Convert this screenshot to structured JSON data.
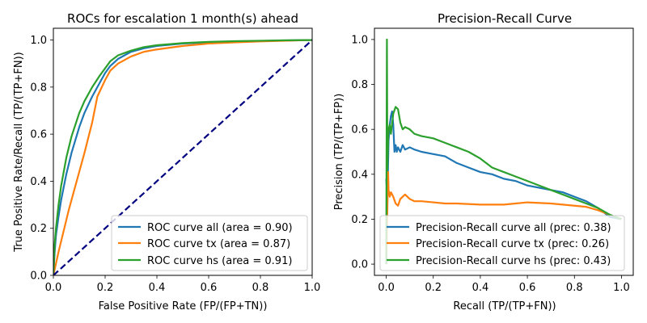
{
  "chart_data": [
    {
      "type": "line",
      "title": "ROCs for escalation 1 month(s) ahead",
      "xlabel": "False Positive Rate (FP/(FP+TN))",
      "ylabel": "True Positive Rate/Recall (TP/(TP+FN))",
      "xlim": [
        0,
        1.0
      ],
      "ylim": [
        0,
        1.05
      ],
      "xticks": [
        "0.0",
        "0.2",
        "0.4",
        "0.6",
        "0.8",
        "1.0"
      ],
      "yticks": [
        "0.0",
        "0.2",
        "0.4",
        "0.6",
        "0.8",
        "1.0"
      ],
      "grid": false,
      "legend_position": "lower-right",
      "series": [
        {
          "name": "ROC curve all (area = 0.90)",
          "color": "#1f77b4",
          "x": [
            0,
            0.005,
            0.01,
            0.02,
            0.03,
            0.05,
            0.07,
            0.1,
            0.12,
            0.15,
            0.18,
            0.2,
            0.22,
            0.25,
            0.3,
            0.35,
            0.4,
            0.5,
            0.6,
            0.7,
            0.8,
            0.9,
            1.0
          ],
          "y": [
            0,
            0.1,
            0.17,
            0.25,
            0.32,
            0.43,
            0.52,
            0.63,
            0.69,
            0.76,
            0.82,
            0.86,
            0.89,
            0.92,
            0.95,
            0.965,
            0.975,
            0.985,
            0.99,
            0.993,
            0.996,
            0.998,
            1.0
          ]
        },
        {
          "name": "ROC curve tx (area = 0.87)",
          "color": "#ff7f0e",
          "x": [
            0,
            0.02,
            0.04,
            0.06,
            0.08,
            0.1,
            0.12,
            0.15,
            0.17,
            0.2,
            0.22,
            0.25,
            0.3,
            0.35,
            0.4,
            0.5,
            0.6,
            0.7,
            0.8,
            0.9,
            1.0
          ],
          "y": [
            0,
            0.1,
            0.19,
            0.28,
            0.36,
            0.44,
            0.52,
            0.65,
            0.76,
            0.83,
            0.87,
            0.9,
            0.93,
            0.95,
            0.96,
            0.975,
            0.985,
            0.99,
            0.994,
            0.997,
            1.0
          ]
        },
        {
          "name": "ROC curve hs (area = 0.91)",
          "color": "#2ca02c",
          "x": [
            0,
            0.005,
            0.01,
            0.02,
            0.03,
            0.05,
            0.07,
            0.1,
            0.12,
            0.15,
            0.18,
            0.2,
            0.22,
            0.25,
            0.3,
            0.35,
            0.4,
            0.5,
            0.6,
            0.7,
            0.8,
            0.9,
            1.0
          ],
          "y": [
            0,
            0.13,
            0.2,
            0.3,
            0.38,
            0.5,
            0.59,
            0.69,
            0.74,
            0.8,
            0.85,
            0.88,
            0.91,
            0.935,
            0.955,
            0.97,
            0.978,
            0.987,
            0.992,
            0.995,
            0.997,
            0.999,
            1.0
          ]
        },
        {
          "name": "",
          "color": "#000080",
          "dashed": true,
          "x": [
            0,
            1.0
          ],
          "y": [
            0,
            1.0
          ]
        }
      ]
    },
    {
      "type": "line",
      "title": "Precision-Recall Curve",
      "xlabel": "Recall (TP/(TP+FN))",
      "ylabel": "Precision (TP/(TP+FP))",
      "xlim": [
        -0.05,
        1.05
      ],
      "ylim": [
        -0.05,
        1.05
      ],
      "xticks": [
        "0.0",
        "0.2",
        "0.4",
        "0.6",
        "0.8",
        "1.0"
      ],
      "yticks": [
        "0.0",
        "0.2",
        "0.4",
        "0.6",
        "0.8",
        "1.0"
      ],
      "grid": false,
      "legend_position": "lower-left",
      "series": [
        {
          "name": "Precision-Recall curve all (prec: 0.38)",
          "color": "#1f77b4",
          "x": [
            0.0,
            0.005,
            0.01,
            0.015,
            0.02,
            0.025,
            0.03,
            0.035,
            0.04,
            0.045,
            0.05,
            0.06,
            0.07,
            0.08,
            0.1,
            0.12,
            0.15,
            0.2,
            0.25,
            0.3,
            0.35,
            0.4,
            0.45,
            0.5,
            0.55,
            0.6,
            0.65,
            0.7,
            0.75,
            0.8,
            0.85,
            0.9,
            0.95,
            1.0
          ],
          "y": [
            0.38,
            0.3,
            0.55,
            0.62,
            0.66,
            0.68,
            0.62,
            0.5,
            0.53,
            0.5,
            0.52,
            0.5,
            0.53,
            0.51,
            0.52,
            0.51,
            0.5,
            0.49,
            0.48,
            0.45,
            0.43,
            0.41,
            0.4,
            0.38,
            0.37,
            0.35,
            0.34,
            0.33,
            0.32,
            0.3,
            0.28,
            0.25,
            0.21,
            0.2
          ]
        },
        {
          "name": "Precision-Recall curve tx (prec: 0.26)",
          "color": "#ff7f0e",
          "x": [
            0.0,
            0.005,
            0.008,
            0.01,
            0.015,
            0.02,
            0.03,
            0.04,
            0.05,
            0.06,
            0.08,
            0.1,
            0.12,
            0.15,
            0.2,
            0.25,
            0.3,
            0.4,
            0.5,
            0.6,
            0.7,
            0.8,
            0.85,
            0.9,
            0.95,
            1.0
          ],
          "y": [
            0.0,
            0.25,
            0.41,
            0.33,
            0.3,
            0.32,
            0.3,
            0.27,
            0.26,
            0.29,
            0.31,
            0.29,
            0.28,
            0.28,
            0.275,
            0.27,
            0.27,
            0.265,
            0.265,
            0.275,
            0.27,
            0.26,
            0.255,
            0.24,
            0.22,
            0.2
          ]
        },
        {
          "name": "Precision-Recall curve hs (prec: 0.43)",
          "color": "#2ca02c",
          "x": [
            0.0,
            0.003,
            0.005,
            0.008,
            0.01,
            0.015,
            0.02,
            0.03,
            0.04,
            0.05,
            0.06,
            0.07,
            0.08,
            0.1,
            0.12,
            0.15,
            0.2,
            0.25,
            0.3,
            0.35,
            0.4,
            0.45,
            0.5,
            0.55,
            0.6,
            0.65,
            0.7,
            0.75,
            0.8,
            0.85,
            0.9,
            0.95,
            1.0
          ],
          "y": [
            0.0,
            1.0,
            0.42,
            0.55,
            0.6,
            0.62,
            0.58,
            0.67,
            0.7,
            0.69,
            0.63,
            0.6,
            0.61,
            0.6,
            0.58,
            0.57,
            0.56,
            0.54,
            0.52,
            0.5,
            0.47,
            0.43,
            0.41,
            0.39,
            0.37,
            0.35,
            0.33,
            0.31,
            0.29,
            0.27,
            0.25,
            0.22,
            0.2
          ]
        }
      ]
    }
  ]
}
